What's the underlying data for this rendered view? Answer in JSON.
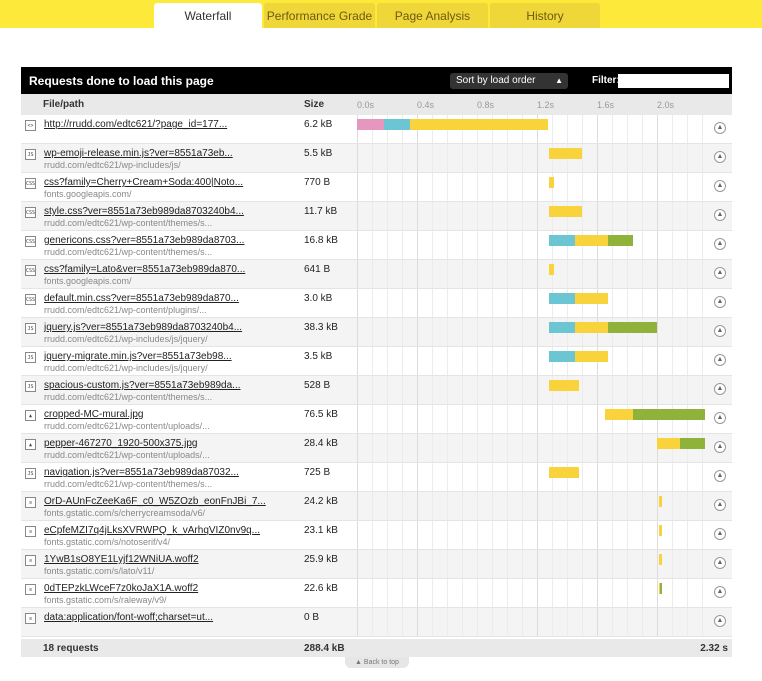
{
  "tabs": [
    {
      "label": "Waterfall",
      "active": true
    },
    {
      "label": "Performance Grade",
      "active": false
    },
    {
      "label": "Page Analysis",
      "active": false
    },
    {
      "label": "History",
      "active": false
    }
  ],
  "panel": {
    "title": "Requests done to load this page",
    "sort_label": "Sort by load order",
    "filter_label": "Filter:",
    "filter_value": ""
  },
  "columns": {
    "file": "File/path",
    "size": "Size"
  },
  "timeline": {
    "ticks": [
      "0.0s",
      "0.4s",
      "0.8s",
      "1.2s",
      "1.6s",
      "2.0s"
    ],
    "max_seconds": 2.32
  },
  "colors": {
    "blocking": "#e597bd",
    "dns": "#6cc5d3",
    "connect": "#f4b2c9",
    "wait": "#f8d33c",
    "receive": "#8eb23a",
    "marker": "#d9a020"
  },
  "requests": [
    {
      "icon": "html",
      "name": "http://rrudd.com/edtc621/?page_id=177...",
      "path": "",
      "size": "6.2 kB",
      "timing": [
        {
          "phase": "blocking",
          "start": 0.0,
          "end": 0.18
        },
        {
          "phase": "dns",
          "start": 0.18,
          "end": 0.35
        },
        {
          "phase": "wait",
          "start": 0.35,
          "end": 1.27
        }
      ]
    },
    {
      "icon": "js",
      "name": "wp-emoji-release.min.js?ver=8551a73eb...",
      "path": "rrudd.com/edtc621/wp-includes/js/",
      "size": "5.5 kB",
      "timing": [
        {
          "phase": "wait",
          "start": 1.28,
          "end": 1.5
        }
      ]
    },
    {
      "icon": "css",
      "name": "css?family=Cherry+Cream+Soda:400|Noto...",
      "path": "fonts.googleapis.com/",
      "size": "770 B",
      "timing": [
        {
          "phase": "wait",
          "start": 1.28,
          "end": 1.31
        }
      ]
    },
    {
      "icon": "css",
      "name": "style.css?ver=8551a73eb989da8703240b4...",
      "path": "rrudd.com/edtc621/wp-content/themes/s...",
      "size": "11.7 kB",
      "timing": [
        {
          "phase": "wait",
          "start": 1.28,
          "end": 1.5
        }
      ]
    },
    {
      "icon": "css",
      "name": "genericons.css?ver=8551a73eb989da8703...",
      "path": "rrudd.com/edtc621/wp-content/themes/s...",
      "size": "16.8 kB",
      "timing": [
        {
          "phase": "dns",
          "start": 1.28,
          "end": 1.45
        },
        {
          "phase": "wait",
          "start": 1.45,
          "end": 1.67
        },
        {
          "phase": "receive",
          "start": 1.67,
          "end": 1.84
        }
      ]
    },
    {
      "icon": "css",
      "name": "css?family=Lato&ver=8551a73eb989da870...",
      "path": "fonts.googleapis.com/",
      "size": "641 B",
      "timing": [
        {
          "phase": "wait",
          "start": 1.28,
          "end": 1.31
        }
      ]
    },
    {
      "icon": "css",
      "name": "default.min.css?ver=8551a73eb989da870...",
      "path": "rrudd.com/edtc621/wp-content/plugins/...",
      "size": "3.0 kB",
      "timing": [
        {
          "phase": "dns",
          "start": 1.28,
          "end": 1.45
        },
        {
          "phase": "wait",
          "start": 1.45,
          "end": 1.67
        }
      ]
    },
    {
      "icon": "js",
      "name": "jquery.js?ver=8551a73eb989da8703240b4...",
      "path": "rrudd.com/edtc621/wp-includes/js/jquery/",
      "size": "38.3 kB",
      "timing": [
        {
          "phase": "dns",
          "start": 1.28,
          "end": 1.45
        },
        {
          "phase": "wait",
          "start": 1.45,
          "end": 1.67
        },
        {
          "phase": "receive",
          "start": 1.67,
          "end": 2.0
        }
      ]
    },
    {
      "icon": "js",
      "name": "jquery-migrate.min.js?ver=8551a73eb98...",
      "path": "rrudd.com/edtc621/wp-includes/js/jquery/",
      "size": "3.5 kB",
      "timing": [
        {
          "phase": "dns",
          "start": 1.28,
          "end": 1.45
        },
        {
          "phase": "wait",
          "start": 1.45,
          "end": 1.67
        }
      ]
    },
    {
      "icon": "js",
      "name": "spacious-custom.js?ver=8551a73eb989da...",
      "path": "rrudd.com/edtc621/wp-content/themes/s...",
      "size": "528 B",
      "timing": [
        {
          "phase": "wait",
          "start": 1.28,
          "end": 1.48
        }
      ]
    },
    {
      "icon": "img",
      "name": "cropped-MC-mural.jpg",
      "path": "rrudd.com/edtc621/wp-content/uploads/...",
      "size": "76.5 kB",
      "timing": [
        {
          "phase": "wait",
          "start": 1.65,
          "end": 1.84
        },
        {
          "phase": "receive",
          "start": 1.84,
          "end": 2.32
        }
      ]
    },
    {
      "icon": "img",
      "name": "pepper-467270_1920-500x375.jpg",
      "path": "rrudd.com/edtc621/wp-content/uploads/...",
      "size": "28.4 kB",
      "timing": [
        {
          "phase": "wait",
          "start": 2.0,
          "end": 2.15
        },
        {
          "phase": "receive",
          "start": 2.15,
          "end": 2.32
        }
      ]
    },
    {
      "icon": "js",
      "name": "navigation.js?ver=8551a73eb989da87032...",
      "path": "rrudd.com/edtc621/wp-content/themes/s...",
      "size": "725 B",
      "timing": [
        {
          "phase": "wait",
          "start": 1.28,
          "end": 1.48
        }
      ]
    },
    {
      "icon": "doc",
      "name": "OrD-AUnFcZeeKa6F_c0_W5ZOzb_eonFnJBi_7...",
      "path": "fonts.gstatic.com/s/cherrycreamsoda/v6/",
      "size": "24.2 kB",
      "timing": [
        {
          "phase": "wait",
          "start": 2.01,
          "end": 2.03
        }
      ]
    },
    {
      "icon": "doc",
      "name": "eCpfeMZI7q4jLksXVRWPQ_k_vArhqVIZ0nv9q...",
      "path": "fonts.gstatic.com/s/notoserif/v4/",
      "size": "23.1 kB",
      "timing": [
        {
          "phase": "wait",
          "start": 2.01,
          "end": 2.03
        }
      ]
    },
    {
      "icon": "doc",
      "name": "1YwB1sO8YE1Lyjf12WNiUA.woff2",
      "path": "fonts.gstatic.com/s/lato/v11/",
      "size": "25.9 kB",
      "timing": [
        {
          "phase": "wait",
          "start": 2.01,
          "end": 2.03
        }
      ]
    },
    {
      "icon": "doc",
      "name": "0dTEPzkLWceF7z0koJaX1A.woff2",
      "path": "fonts.gstatic.com/s/raleway/v9/",
      "size": "22.6 kB",
      "timing": [
        {
          "phase": "wait",
          "start": 2.01,
          "end": 2.02
        },
        {
          "phase": "receive",
          "start": 2.02,
          "end": 2.03
        }
      ]
    },
    {
      "icon": "doc",
      "name": "data:application/font-woff;charset=ut...",
      "path": "",
      "size": "0 B",
      "timing": []
    }
  ],
  "footer": {
    "count": "18 requests",
    "total_size": "288.4 kB",
    "total_time": "2.32 s"
  },
  "back_to_top": "Back to top"
}
